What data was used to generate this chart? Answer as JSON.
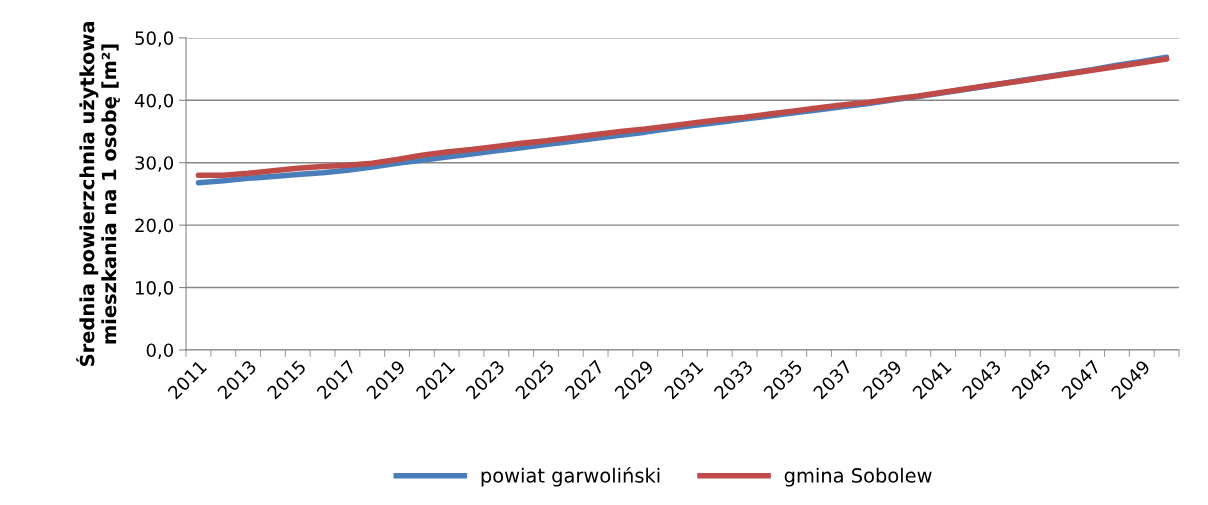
{
  "chart_data": {
    "type": "line",
    "ylabel": "Średnia powierzchnia użytkowa\nmieszkania na 1 osobę [m²]",
    "categories": [
      "2011",
      null,
      "2013",
      null,
      "2015",
      null,
      "2017",
      null,
      "2019",
      null,
      "2021",
      null,
      "2023",
      null,
      "2025",
      null,
      "2027",
      null,
      "2029",
      null,
      "2031",
      null,
      "2033",
      null,
      "2035",
      null,
      "2037",
      null,
      "2039",
      null,
      "2041",
      null,
      "2043",
      null,
      "2045",
      null,
      "2047",
      null,
      "2049",
      null
    ],
    "series": [
      {
        "name": "powiat garwoliński",
        "color": "#4a7ebb",
        "values": [
          26.8,
          27.1,
          27.5,
          27.8,
          28.1,
          28.4,
          28.8,
          29.3,
          29.9,
          30.4,
          30.9,
          31.4,
          31.9,
          32.4,
          32.9,
          33.4,
          33.9,
          34.4,
          34.9,
          35.5,
          36.0,
          36.5,
          37.0,
          37.5,
          38.0,
          38.5,
          39.0,
          39.5,
          40.1,
          40.6,
          41.2,
          41.8,
          42.4,
          43.1,
          43.7,
          44.3,
          44.9,
          45.6,
          46.2,
          46.9
        ]
      },
      {
        "name": "gmina Sobolew",
        "color": "#be4b48",
        "values": [
          28.0,
          28.0,
          28.3,
          28.7,
          29.1,
          29.4,
          29.6,
          29.9,
          30.5,
          31.2,
          31.7,
          32.1,
          32.6,
          33.1,
          33.5,
          34.0,
          34.5,
          35.0,
          35.4,
          35.9,
          36.4,
          36.9,
          37.3,
          37.8,
          38.3,
          38.8,
          39.3,
          39.7,
          40.2,
          40.7,
          41.3,
          41.9,
          42.5,
          43.0,
          43.6,
          44.2,
          44.8,
          45.4,
          46.0,
          46.6
        ]
      }
    ],
    "ylim": [
      0,
      50
    ],
    "yticks": [
      {
        "value": 0,
        "label": "0,0"
      },
      {
        "value": 10,
        "label": "10,0"
      },
      {
        "value": 20,
        "label": "20,0"
      },
      {
        "value": 30,
        "label": "30,0"
      },
      {
        "value": 40,
        "label": "40,0"
      },
      {
        "value": 50,
        "label": "50,0"
      }
    ],
    "grid": "y",
    "legend": "bottom",
    "marker": "none",
    "line_style": "solid"
  }
}
